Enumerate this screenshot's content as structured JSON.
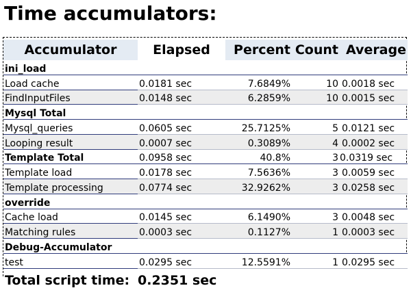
{
  "title": "Time accumulators:",
  "headers": {
    "accumulator": "Accumulator",
    "elapsed": "Elapsed",
    "percent": "Percent",
    "count": "Count",
    "average": "Average"
  },
  "groups": {
    "ini_load": "ini_load",
    "mysql_total": "Mysql Total",
    "override": "override",
    "debug_accumulator": "Debug-Accumulator"
  },
  "rows": {
    "load_cache": {
      "name": "Load cache",
      "elapsed": "0.0181 sec",
      "percent": "7.6849%",
      "count": "10",
      "average": "0.0018 sec"
    },
    "findinputfiles": {
      "name": "FindInputFiles",
      "elapsed": "0.0148 sec",
      "percent": "6.2859%",
      "count": "10",
      "average": "0.0015 sec"
    },
    "mysql_queries": {
      "name": "Mysql_queries",
      "elapsed": "0.0605 sec",
      "percent": "25.7125%",
      "count": "5",
      "average": "0.0121 sec"
    },
    "looping_result": {
      "name": "Looping result",
      "elapsed": "0.0007 sec",
      "percent": "0.3089%",
      "count": "4",
      "average": "0.0002 sec"
    },
    "template_total": {
      "name": "Template Total",
      "elapsed": "0.0958 sec",
      "percent": "40.8%",
      "count": "3",
      "average": "0.0319 sec"
    },
    "template_load": {
      "name": "Template load",
      "elapsed": "0.0178 sec",
      "percent": "7.5636%",
      "count": "3",
      "average": "0.0059 sec"
    },
    "template_processing": {
      "name": "Template processing",
      "elapsed": "0.0774 sec",
      "percent": "32.9262%",
      "count": "3",
      "average": "0.0258 sec"
    },
    "cache_load": {
      "name": "Cache load",
      "elapsed": "0.0145 sec",
      "percent": "6.1490%",
      "count": "3",
      "average": "0.0048 sec"
    },
    "matching_rules": {
      "name": "Matching rules",
      "elapsed": "0.0003 sec",
      "percent": "0.1127%",
      "count": "1",
      "average": "0.0003 sec"
    },
    "test": {
      "name": "test",
      "elapsed": "0.0295 sec",
      "percent": "12.5591%",
      "count": "1",
      "average": "0.0295 sec"
    }
  },
  "total": {
    "label": "Total script time:",
    "value": "0.2351 sec"
  }
}
